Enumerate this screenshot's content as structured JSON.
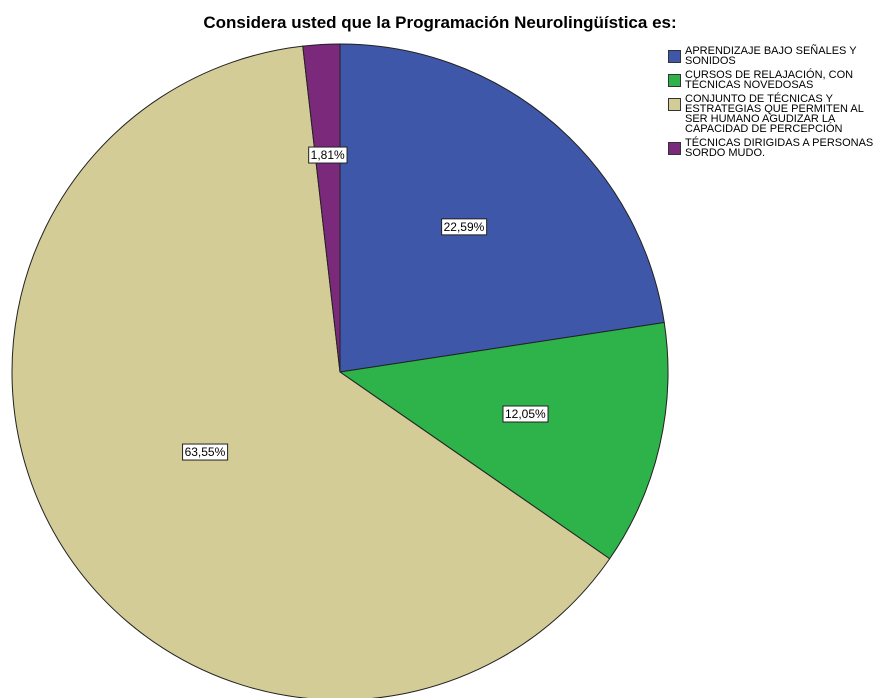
{
  "chart_data": {
    "type": "pie",
    "title": "Considera usted que la Programación Neurolingüística es:",
    "categories": [
      "APRENDIZAJE BAJO SEÑALES Y SONIDOS",
      "CURSOS DE RELAJACIÓN, CON TÉCNICAS NOVEDOSAS",
      "CONJUNTO DE TÉCNICAS Y ESTRATEGIAS QUE PERMITEN AL SER HUMANO AGUDIZAR LA CAPACIDAD DE PERCEPCIÓN",
      "TÉCNICAS DIRIGIDAS A PERSONAS SORDO MUDO."
    ],
    "values": [
      22.59,
      12.05,
      63.55,
      1.81
    ],
    "value_labels": [
      "22,59%",
      "12,05%",
      "63,55%",
      "1,81%"
    ],
    "colors": [
      "#3f57a8",
      "#2db34a",
      "#d3cc97",
      "#7b2a7b"
    ],
    "legend": "right"
  }
}
